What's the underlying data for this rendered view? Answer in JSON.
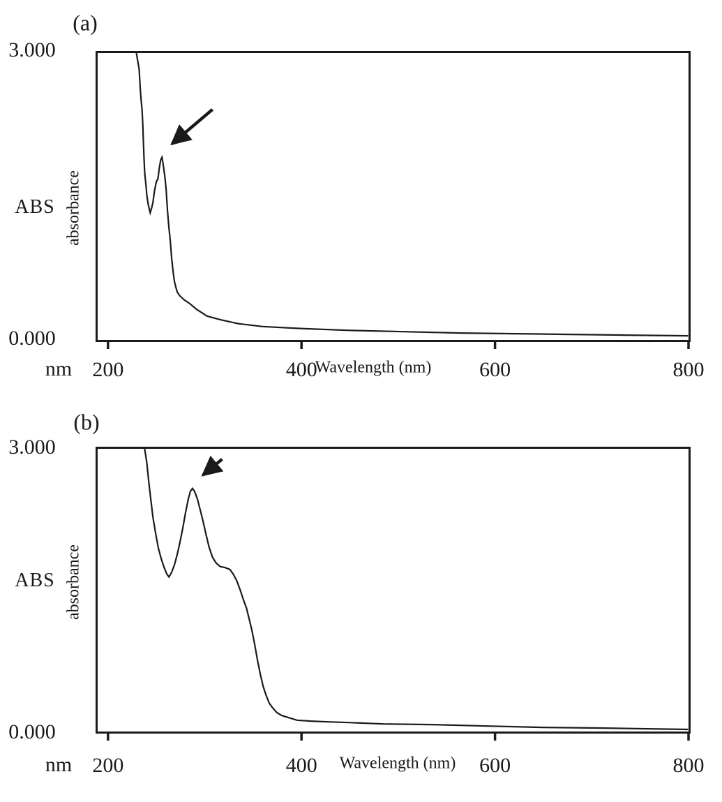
{
  "figure": {
    "background_color": "#ffffff",
    "ink_color": "#1a1a1a"
  },
  "chart_data": [
    {
      "panel_label": "(a)",
      "type": "line",
      "title": "",
      "xlabel": "Wavelength (nm)",
      "x_unit_label": "nm",
      "ylabel_main": "ABS",
      "ylabel_sub": "absorbance",
      "y_top_label": "3.000",
      "y_bottom_label": "0.000",
      "axes": {
        "xlim": [
          189.3,
          800
        ],
        "ylim": [
          0,
          3
        ],
        "xticks": [
          200,
          400,
          600,
          800
        ],
        "xtick_labels": [
          "200",
          "400",
          "600",
          "800"
        ],
        "grid": false
      },
      "series_name": "absorbance spectrum",
      "points": [
        [
          229.3,
          3.0
        ],
        [
          230.8,
          2.91
        ],
        [
          232.2,
          2.83
        ],
        [
          232.9,
          2.7
        ],
        [
          233.6,
          2.59
        ],
        [
          234.3,
          2.5
        ],
        [
          235.1,
          2.42
        ],
        [
          235.8,
          2.29
        ],
        [
          236.5,
          2.09
        ],
        [
          237.2,
          1.91
        ],
        [
          237.9,
          1.75
        ],
        [
          239.4,
          1.6
        ],
        [
          240.1,
          1.51
        ],
        [
          241.5,
          1.42
        ],
        [
          242.9,
          1.36
        ],
        [
          243.6,
          1.33
        ],
        [
          245.1,
          1.38
        ],
        [
          246.5,
          1.44
        ],
        [
          247.9,
          1.55
        ],
        [
          249.4,
          1.63
        ],
        [
          250.1,
          1.66
        ],
        [
          251.5,
          1.68
        ],
        [
          252.2,
          1.73
        ],
        [
          252.9,
          1.79
        ],
        [
          254.4,
          1.88
        ],
        [
          255.8,
          1.91
        ],
        [
          257.2,
          1.82
        ],
        [
          258.7,
          1.71
        ],
        [
          260.1,
          1.57
        ],
        [
          261.5,
          1.35
        ],
        [
          263,
          1.17
        ],
        [
          264.4,
          1.03
        ],
        [
          265.8,
          0.85
        ],
        [
          267.3,
          0.71
        ],
        [
          268.7,
          0.61
        ],
        [
          270.1,
          0.55
        ],
        [
          271.6,
          0.5
        ],
        [
          274.4,
          0.46
        ],
        [
          278.7,
          0.42
        ],
        [
          284.4,
          0.38
        ],
        [
          291.6,
          0.32
        ],
        [
          302.3,
          0.25
        ],
        [
          316.6,
          0.21
        ],
        [
          334.5,
          0.17
        ],
        [
          359.6,
          0.14
        ],
        [
          398.9,
          0.12
        ],
        [
          449,
          0.1
        ],
        [
          506.3,
          0.086
        ],
        [
          563.5,
          0.072
        ],
        [
          620.8,
          0.065
        ],
        [
          678,
          0.058
        ],
        [
          735.2,
          0.05
        ],
        [
          799.6,
          0.043
        ]
      ],
      "annotation_arrow": {
        "from": [
          308,
          2.41
        ],
        "to": [
          266,
          2.05
        ]
      }
    },
    {
      "panel_label": "(b)",
      "type": "line",
      "title": "",
      "xlabel": "Wavelength (nm)",
      "x_unit_label": "nm",
      "ylabel_main": "ABS",
      "ylabel_sub": "absorbance",
      "y_top_label": "3.000",
      "y_bottom_label": "0.000",
      "axes": {
        "xlim": [
          189.3,
          800
        ],
        "ylim": [
          0,
          3
        ],
        "xticks": [
          200,
          400,
          600,
          800
        ],
        "xtick_labels": [
          "200",
          "400",
          "600",
          "800"
        ],
        "grid": false
      },
      "series_name": "absorbance spectrum",
      "points": [
        [
          237.9,
          3.0
        ],
        [
          240.1,
          2.85
        ],
        [
          242.2,
          2.64
        ],
        [
          244.4,
          2.45
        ],
        [
          246.5,
          2.27
        ],
        [
          249.4,
          2.09
        ],
        [
          252.2,
          1.94
        ],
        [
          255.1,
          1.83
        ],
        [
          258,
          1.74
        ],
        [
          260.8,
          1.67
        ],
        [
          263,
          1.64
        ],
        [
          265.8,
          1.69
        ],
        [
          268.7,
          1.77
        ],
        [
          271.6,
          1.88
        ],
        [
          274.4,
          2.01
        ],
        [
          277.3,
          2.16
        ],
        [
          280.1,
          2.32
        ],
        [
          283,
          2.47
        ],
        [
          285.1,
          2.55
        ],
        [
          287.3,
          2.58
        ],
        [
          289.4,
          2.55
        ],
        [
          292.3,
          2.47
        ],
        [
          295.1,
          2.36
        ],
        [
          298,
          2.24
        ],
        [
          300.9,
          2.11
        ],
        [
          304.4,
          1.96
        ],
        [
          308,
          1.85
        ],
        [
          311.6,
          1.79
        ],
        [
          315.9,
          1.75
        ],
        [
          320.9,
          1.74
        ],
        [
          325.9,
          1.72
        ],
        [
          329.5,
          1.67
        ],
        [
          333.1,
          1.6
        ],
        [
          336.7,
          1.5
        ],
        [
          340.2,
          1.39
        ],
        [
          343.1,
          1.31
        ],
        [
          346,
          1.19
        ],
        [
          348.8,
          1.07
        ],
        [
          351.7,
          0.92
        ],
        [
          354.6,
          0.75
        ],
        [
          357.4,
          0.61
        ],
        [
          360.3,
          0.48
        ],
        [
          363.2,
          0.39
        ],
        [
          366.7,
          0.3
        ],
        [
          370.3,
          0.25
        ],
        [
          374.6,
          0.2
        ],
        [
          379.6,
          0.17
        ],
        [
          386,
          0.15
        ],
        [
          395.3,
          0.12
        ],
        [
          409.7,
          0.11
        ],
        [
          427.5,
          0.102
        ],
        [
          449,
          0.095
        ],
        [
          484.8,
          0.08
        ],
        [
          534.9,
          0.073
        ],
        [
          592.1,
          0.058
        ],
        [
          649.4,
          0.044
        ],
        [
          706.6,
          0.037
        ],
        [
          756.7,
          0.029
        ],
        [
          799.6,
          0.022
        ]
      ],
      "annotation_arrow": {
        "from": [
          318,
          2.89
        ],
        "to": [
          298,
          2.72
        ]
      }
    }
  ]
}
